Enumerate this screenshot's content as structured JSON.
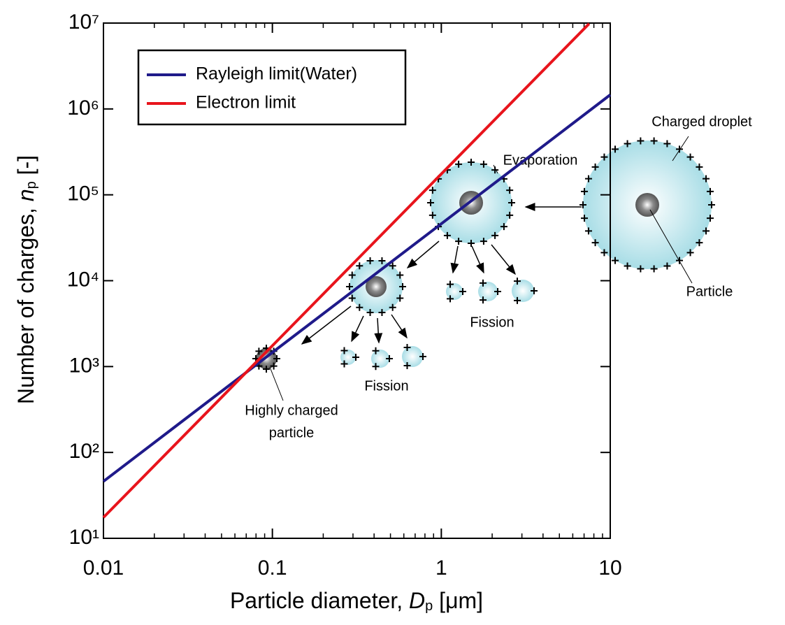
{
  "chart_data": {
    "type": "line",
    "xlabel": [
      "Particle diameter, ",
      "D",
      "p",
      " [μm]"
    ],
    "ylabel": [
      "Number of charges, ",
      "n",
      "p",
      " [-]"
    ],
    "log_x": true,
    "log_y": true,
    "xlim": [
      0.01,
      10
    ],
    "ylim": [
      10,
      10000000
    ],
    "xticks": [
      0.01,
      0.1,
      1,
      10
    ],
    "xminorticks": [
      0.02,
      0.03,
      0.04,
      0.05,
      0.06,
      0.07,
      0.08,
      0.09,
      0.2,
      0.3,
      0.4,
      0.5,
      0.6,
      0.7,
      0.8,
      0.9,
      2,
      3,
      4,
      5,
      6,
      7,
      8,
      9
    ],
    "yticks": [
      {
        "value": 10,
        "label": "10¹"
      },
      {
        "value": 100,
        "label": "10²"
      },
      {
        "value": 1000,
        "label": "10³"
      },
      {
        "value": 10000,
        "label": "10⁴"
      },
      {
        "value": 100000,
        "label": "10⁵"
      },
      {
        "value": 1000000,
        "label": "10⁶"
      },
      {
        "value": 10000000,
        "label": "10⁷"
      }
    ],
    "legend": "upper left",
    "series": [
      {
        "name": "Rayleigh limit(Water)",
        "color": "#1f1a8a",
        "x": [
          0.01,
          0.1,
          1,
          10
        ],
        "values": [
          46,
          1460,
          46000,
          1460000
        ]
      },
      {
        "name": "Electron limit",
        "color": "#e8141c",
        "x": [
          0.01,
          0.1,
          1,
          7.5
        ],
        "values": [
          17.5,
          1750,
          175000,
          9840000
        ]
      }
    ],
    "annotations": [
      "Evaporation",
      "Charged droplet",
      "Particle",
      "Fission",
      "Fission",
      "Highly charged",
      "particle"
    ]
  }
}
